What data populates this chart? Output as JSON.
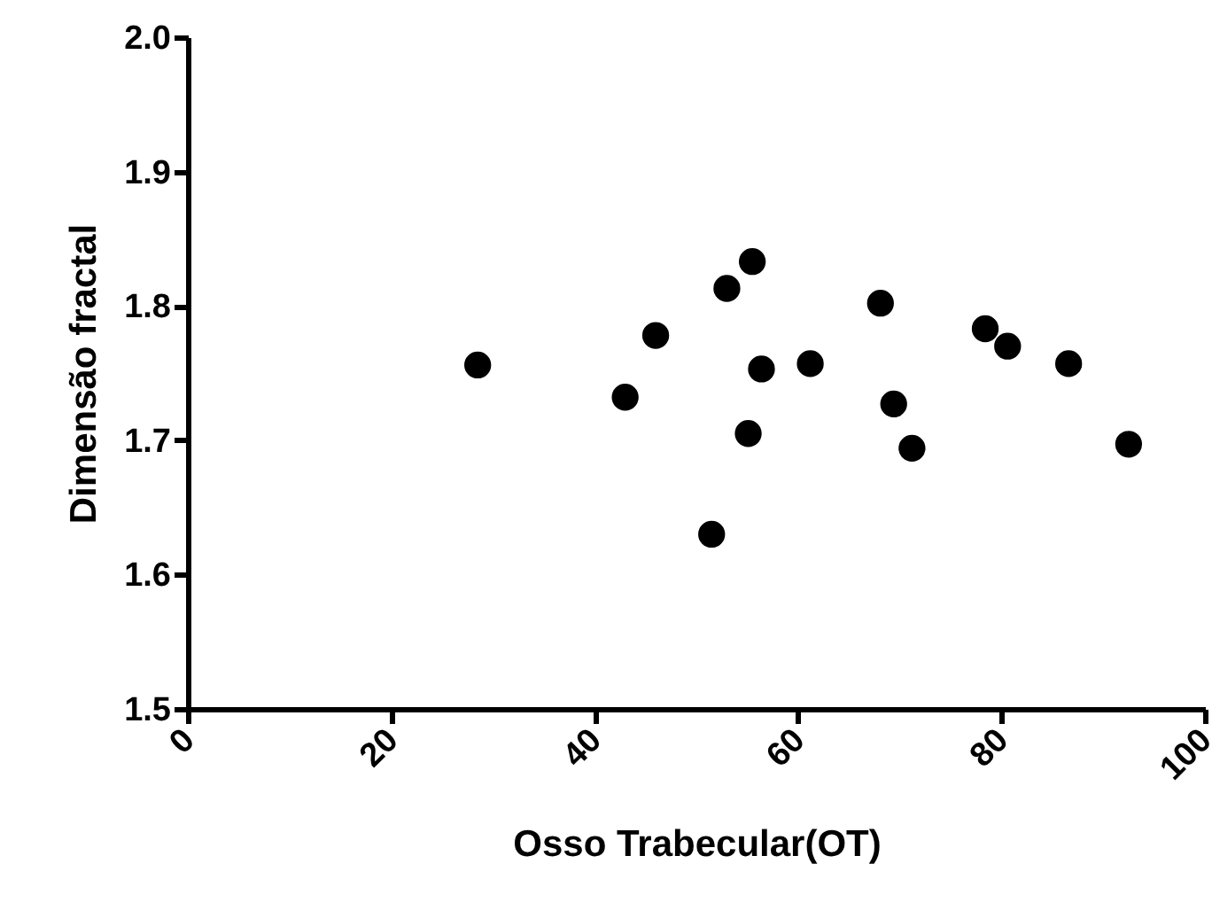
{
  "chart_data": {
    "type": "scatter",
    "xlabel": "Osso Trabecular(OT)",
    "ylabel": "Dimensão fractal",
    "x": [
      28.5,
      43.0,
      46.0,
      53.0,
      55.5,
      55.1,
      56.4,
      51.5,
      61.2,
      68.1,
      69.4,
      71.2,
      78.4,
      80.6,
      86.6,
      92.5
    ],
    "series": [
      {
        "color": "#000000",
        "values": [
          1.756,
          1.732,
          1.778,
          1.813,
          1.833,
          1.705,
          1.753,
          1.63,
          1.757,
          1.802,
          1.727,
          1.694,
          1.783,
          1.77,
          1.757,
          1.697
        ]
      }
    ],
    "xlim": [
      0,
      100
    ],
    "xticks": [
      0,
      20,
      40,
      60,
      80,
      100
    ],
    "ylim": [
      1.5,
      2.0
    ],
    "yticks": [
      {
        "value": 1.5,
        "label": "1.5"
      },
      {
        "value": 1.6,
        "label": "1.6"
      },
      {
        "value": 1.7,
        "label": "1.7"
      },
      {
        "value": 1.8,
        "label": "1.8"
      },
      {
        "value": 1.9,
        "label": "1.9"
      },
      {
        "value": 2.0,
        "label": "2.0"
      }
    ],
    "marker": "circle",
    "grid": false
  }
}
